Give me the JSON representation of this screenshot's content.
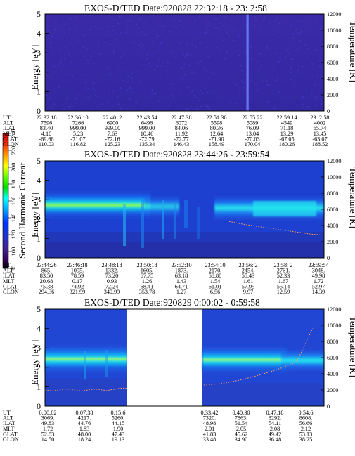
{
  "colorbar": {
    "label": "Second Harmonic Current",
    "ticks": [
      "240",
      "220",
      "200",
      "180",
      "160",
      "140",
      "120",
      "100",
      "80"
    ],
    "colors": [
      "#cc0000",
      "#ff3300",
      "#ff9900",
      "#ffff00",
      "#66ff00",
      "#00dd00",
      "#00ffff",
      "#00aaff",
      "#0033ff",
      "#2233cc",
      "#3322aa",
      "#442288",
      "#330055",
      "#000000"
    ]
  },
  "panels": [
    {
      "title": "EXOS-D/TED   Date:920828  22:32:18 - 23: 2:58",
      "ylabel": "Energy [eV]",
      "y2label": "Temperature [K]",
      "energy_ticks": [
        "0",
        "1",
        "2",
        "3",
        "4",
        "5"
      ],
      "temp_ticks": [
        "0",
        "2000",
        "4000",
        "6000",
        "8000",
        "10000",
        "12000"
      ],
      "orbit_labels": [
        "UT",
        "ALT",
        "ILAT",
        "MLT",
        "GLAT",
        "GLON"
      ],
      "orbit_columns": [
        [
          "22:32:18",
          "7596",
          "83.40",
          "4.10",
          "-69.68",
          "110.03"
        ],
        [
          "22:36:10",
          "7266",
          "999.00",
          "5.23",
          "-71.07",
          "116.82"
        ],
        [
          "22:40: 2",
          "6900",
          "999.00",
          "7.63",
          "-72.16",
          "125.23"
        ],
        [
          "22:43:54",
          "6496",
          "999.00",
          "10.46",
          "-72.79",
          "135.34"
        ],
        [
          "22:47:38",
          "6072",
          "84.06",
          "11.92",
          "-72.77",
          "146.43"
        ],
        [
          "22:51:30",
          "5598",
          "80.36",
          "12.64",
          "-71.90",
          "158.49"
        ],
        [
          "22:55:22",
          "5089",
          "76.09",
          "13.04",
          "-70.03",
          "170.04"
        ],
        [
          "22:59:14",
          "4549",
          "71.18",
          "13.29",
          "-67.05",
          "180.26"
        ],
        [
          "23: 2:58",
          "4002",
          "65.74",
          "13.45",
          "-63.07",
          "188.52"
        ]
      ]
    },
    {
      "title": "EXOS-D/TED   Date:920828  23:44:26 - 23:59:54",
      "ylabel": "Energy [eV]",
      "y2label": "Temperature [K]",
      "energy_ticks": [
        "0",
        "1",
        "2",
        "3",
        "4",
        "5"
      ],
      "temp_ticks": [
        "0",
        "2000",
        "4000",
        "6000",
        "8000",
        "10000",
        "12000"
      ],
      "orbit_labels": [
        "UT",
        "ALT",
        "ILAT",
        "MLT",
        "GLAT",
        "GLON"
      ],
      "orbit_columns": [
        [
          "23:44:26",
          "865.",
          "83.50",
          "20.68",
          "75.38",
          "294.36"
        ],
        [
          "23:46:18",
          "1095.",
          "78.59",
          "0.17",
          "74.92",
          "321.99"
        ],
        [
          "23:48:18",
          "1332.",
          "73.20",
          "0.93",
          "72.24",
          "340.99"
        ],
        [
          "23:50:18",
          "1605.",
          "67.75",
          "1.26",
          "68.41",
          "353.78"
        ],
        [
          "23:52:10",
          "1873.",
          "63.18",
          "1.43",
          "64.71",
          "1.27"
        ],
        [
          "23:54:10",
          "2170.",
          "58.88",
          "1.54",
          "61.01",
          "6.56"
        ],
        [
          "23:56: 2",
          "2454.",
          "55.43",
          "1.61",
          "57.95",
          "9.97"
        ],
        [
          "23:58: 2",
          "2761.",
          "52.33",
          "1.67",
          "55.14",
          "12.59"
        ],
        [
          "23:59:54",
          "3048.",
          "49.98",
          "1.72",
          "52.97",
          "14.39"
        ]
      ],
      "temperature_trace": {
        "start_fraction": 0.66,
        "points": [
          [
            0.66,
            4500
          ],
          [
            0.72,
            4100
          ],
          [
            0.78,
            3800
          ],
          [
            0.84,
            3500
          ],
          [
            0.9,
            3200
          ],
          [
            0.95,
            2950
          ],
          [
            1.0,
            2800
          ]
        ]
      }
    },
    {
      "title": "EXOS-D/TED   Date:920829  0:00:02 - 0:59:58",
      "ylabel": "Energy [eV]",
      "y2label": "Temperature [K]",
      "energy_ticks": [
        "0",
        "1",
        "2",
        "3",
        "4",
        "5"
      ],
      "temp_ticks": [
        "0",
        "2000",
        "4000",
        "6000",
        "8000",
        "10000",
        "12000"
      ],
      "orbit_labels": [
        "UT",
        "ALT",
        "ILAT",
        "MLT",
        "GLAT",
        "GLON"
      ],
      "orbit_columns": [
        [
          "0:00:02",
          "3069.",
          "49.83",
          "1.72",
          "52.83",
          "14.50"
        ],
        [
          "0:07:38",
          "4217.",
          "44.76",
          "1.83",
          "48.00",
          "18.24"
        ],
        [
          "0:15:6",
          "5260.",
          "44.15",
          "1.90",
          "47.43",
          "19.13"
        ],
        [
          "0:33:42",
          "7320.",
          "48.98",
          "2.01",
          "41.83",
          "33.48"
        ],
        [
          "0:40:30",
          "7863.",
          "51.54",
          "2.05",
          "45.62",
          "34.90"
        ],
        [
          "0:47:18",
          "8292.",
          "54.11",
          "2.08",
          "49.42",
          "36.48"
        ],
        [
          "0:54:6",
          "8608.",
          "56.66",
          "2.12",
          "53.13",
          "38.25"
        ]
      ],
      "data_gap": [
        0.37,
        0.66
      ]
    }
  ],
  "chart_data": [
    {
      "type": "heatmap",
      "title": "EXOS-D/TED   Date:920828  22:32:18 - 23: 2:58",
      "xlabel": "UT",
      "ylabel": "Energy [eV]",
      "y2label": "Temperature [K]",
      "x_ticks": [
        "22:32:18",
        "22:36:10",
        "22:40: 2",
        "22:43:54",
        "22:47:38",
        "22:51:30",
        "22:55:22",
        "22:59:14",
        "23: 2:58"
      ],
      "ylim": [
        0,
        5
      ],
      "y2lim": [
        0,
        12000
      ],
      "colorbar_range": [
        80,
        240
      ],
      "description_values": "uniform low level (~110-120) with a brighter streak near 22:55"
    },
    {
      "type": "heatmap",
      "title": "EXOS-D/TED   Date:920828  23:44:26 - 23:59:54",
      "xlabel": "UT",
      "ylabel": "Energy [eV]",
      "y2label": "Temperature [K]",
      "x_ticks": [
        "23:44:26",
        "23:46:18",
        "23:48:18",
        "23:50:18",
        "23:52:10",
        "23:54:10",
        "23:56: 2",
        "23:58: 2",
        "23:59:54"
      ],
      "ylim": [
        0,
        5
      ],
      "y2lim": [
        0,
        12000
      ],
      "colorbar_range": [
        80,
        240
      ],
      "peak_energy_eV": 2.6
    },
    {
      "type": "heatmap",
      "title": "EXOS-D/TED   Date:920829  0:00:02 - 0:59:58",
      "xlabel": "UT",
      "ylabel": "Energy [eV]",
      "y2label": "Temperature [K]",
      "x_ticks": [
        "0:00:02",
        "0:07:38",
        "0:15:6",
        "0:33:42",
        "0:40:30",
        "0:47:18",
        "0:54:6"
      ],
      "ylim": [
        0,
        5
      ],
      "y2lim": [
        0,
        12000
      ],
      "colorbar_range": [
        80,
        240
      ],
      "peak_energy_eV": 2.5
    }
  ]
}
